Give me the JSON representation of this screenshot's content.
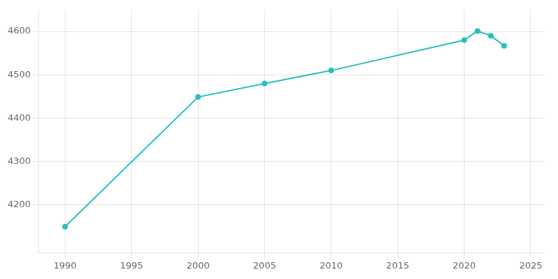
{
  "chart_data": {
    "type": "line",
    "x": [
      1990,
      2000,
      2005,
      2010,
      2020,
      2021,
      2022,
      2023
    ],
    "values": [
      4150,
      4449,
      4480,
      4510,
      4580,
      4601,
      4590,
      4567
    ],
    "color": "#2abfbf",
    "marker": "circle",
    "xlim": [
      1988,
      2026
    ],
    "xticks": [
      1990,
      1995,
      2000,
      2005,
      2010,
      2015,
      2020,
      2025
    ],
    "ylim": [
      4090,
      4650
    ],
    "yticks": [
      4200,
      4300,
      4400,
      4500,
      4600
    ],
    "grid": true
  }
}
